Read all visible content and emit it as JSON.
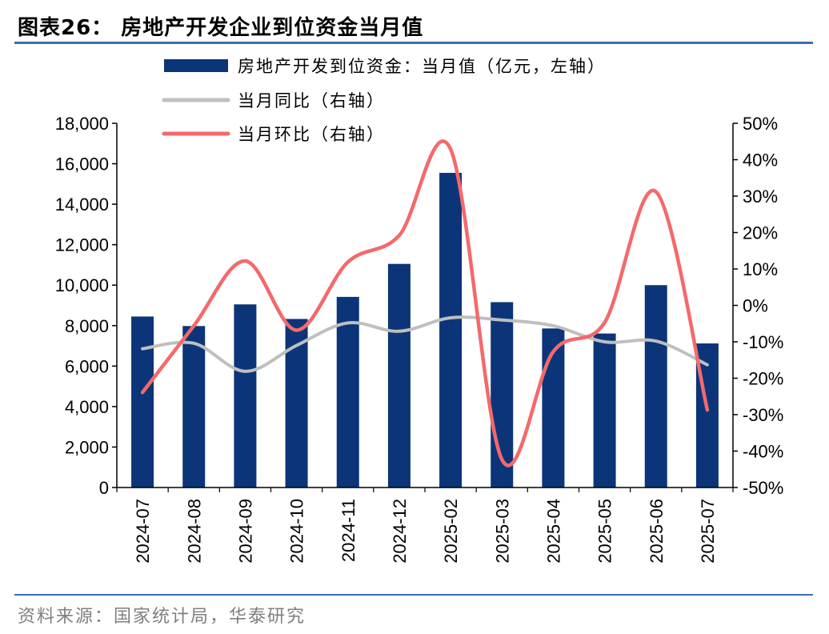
{
  "title": "图表26：  房地产开发企业到位资金当月值",
  "source": "资料来源：国家统计局，华泰研究",
  "colors": {
    "bar": "#0b3578",
    "yoy": "#bfbfbf",
    "mom": "#f4696b",
    "rule": "#3b6fb6"
  },
  "chart_data": {
    "type": "bar",
    "categories": [
      "2024-07",
      "2024-08",
      "2024-09",
      "2024-10",
      "2024-11",
      "2024-12",
      "2025-02",
      "2025-03",
      "2025-04",
      "2025-05",
      "2025-06",
      "2025-07"
    ],
    "series": [
      {
        "name": "房地产开发到位资金：当月值（亿元，左轴）",
        "type": "bar",
        "axis": "left",
        "values": [
          8450,
          7980,
          9050,
          8330,
          9420,
          11050,
          15550,
          9160,
          7860,
          7610,
          10000,
          7120
        ]
      },
      {
        "name": "当月同比（右轴）",
        "type": "line",
        "axis": "right",
        "values": [
          -11.9,
          -10.4,
          -18.1,
          -11.0,
          -4.8,
          -7.1,
          -3.4,
          -4.0,
          -5.6,
          -10.0,
          -9.8,
          -16.3
        ]
      },
      {
        "name": "当月环比（右轴）",
        "type": "line",
        "axis": "right",
        "values": [
          -23.9,
          -5.6,
          12.2,
          -6.8,
          11.9,
          19.2,
          42.9,
          -42.3,
          -12.7,
          -4.7,
          31.2,
          -28.7
        ]
      }
    ],
    "left_axis": {
      "ylim": [
        0,
        18000
      ],
      "ticks": [
        "0",
        "2,000",
        "4,000",
        "6,000",
        "8,000",
        "10,000",
        "12,000",
        "14,000",
        "16,000",
        "18,000"
      ]
    },
    "right_axis": {
      "ylim": [
        -50,
        50
      ],
      "ticks": [
        "-50%",
        "-40%",
        "-30%",
        "-20%",
        "-10%",
        "0%",
        "10%",
        "20%",
        "30%",
        "40%",
        "50%"
      ]
    },
    "legend_position": "top",
    "grid": false
  }
}
